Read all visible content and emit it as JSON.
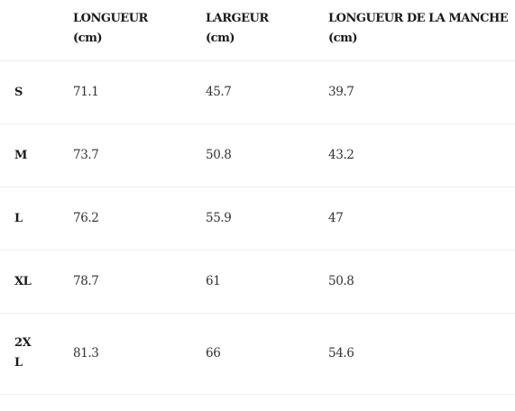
{
  "table": {
    "headers": {
      "size": "",
      "length": "LONGUEUR",
      "length_unit": "(cm)",
      "width": "LARGEUR",
      "width_unit": "(cm)",
      "sleeve": "LONGUEUR DE LA MANCHE",
      "sleeve_unit": "(cm)"
    },
    "rows": [
      {
        "size": "S",
        "length": "71.1",
        "width": "45.7",
        "sleeve": "39.7"
      },
      {
        "size": "M",
        "length": "73.7",
        "width": "50.8",
        "sleeve": "43.2"
      },
      {
        "size": "L",
        "length": "76.2",
        "width": "55.9",
        "sleeve": "47"
      },
      {
        "size": "XL",
        "length": "78.7",
        "width": "61",
        "sleeve": "50.8"
      },
      {
        "size": "2XL",
        "length": "81.3",
        "width": "66",
        "sleeve": "54.6"
      }
    ]
  }
}
